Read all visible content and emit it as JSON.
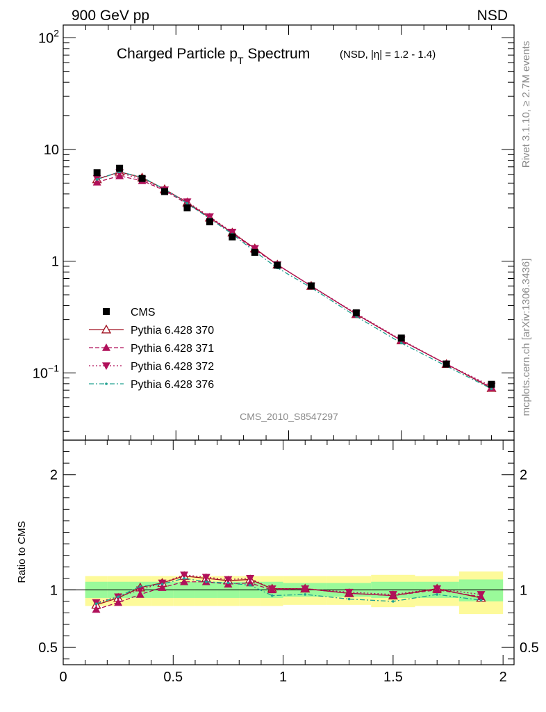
{
  "header": {
    "left": "900 GeV pp",
    "right": "NSD"
  },
  "side_labels": {
    "rivet": "Rivet 3.1.10, ≥ 2.7M events",
    "mcplots": "mcplots.cern.ch [arXiv:1306.3436]"
  },
  "chart_data": [
    {
      "type": "scatter",
      "title": "Charged Particle p",
      "title_sub": "T",
      "title_rest": " Spectrum",
      "subtitle": "(NSD, |η| = 1.2 - 1.4)",
      "watermark": "CMS_2010_S8547297",
      "yscale": "log",
      "xlim": [
        0,
        2
      ],
      "ylim": [
        0.025,
        130
      ],
      "y_ticks": [
        {
          "v": 100,
          "m": "10",
          "e": "2"
        },
        {
          "v": 10,
          "m": "10",
          "e": ""
        },
        {
          "v": 1,
          "m": "1",
          "e": ""
        },
        {
          "v": 0.1,
          "m": "10",
          "e": "−1"
        }
      ],
      "legend_position": "middle-left",
      "x": [
        0.15,
        0.25,
        0.35,
        0.45,
        0.55,
        0.65,
        0.75,
        0.85,
        0.95,
        1.1,
        1.3,
        1.5,
        1.7,
        1.9
      ],
      "series": [
        {
          "name": "CMS",
          "color": "#000000",
          "style": "data",
          "values": [
            6.2,
            6.8,
            5.5,
            4.2,
            3.0,
            2.25,
            1.65,
            1.2,
            0.92,
            0.6,
            0.345,
            0.205,
            0.12,
            0.079
          ]
        },
        {
          "name": "Pythia 6.428 370",
          "color": "#a01020",
          "style": "solid",
          "marker": "triangle-open",
          "values": [
            5.4,
            6.3,
            5.6,
            4.4,
            3.35,
            2.45,
            1.8,
            1.3,
            0.93,
            0.6,
            0.335,
            0.195,
            0.12,
            0.073
          ]
        },
        {
          "name": "Pythia 6.428 371",
          "color": "#b0105a",
          "style": "dashed",
          "marker": "triangle-up",
          "values": [
            5.1,
            5.8,
            5.25,
            4.3,
            3.25,
            2.45,
            1.78,
            1.27,
            0.93,
            0.6,
            0.335,
            0.195,
            0.12,
            0.074
          ]
        },
        {
          "name": "Pythia 6.428 372",
          "color": "#b0105a",
          "style": "dotted",
          "marker": "triangle-down",
          "values": [
            5.5,
            6.2,
            5.4,
            4.35,
            3.4,
            2.5,
            1.82,
            1.3,
            0.93,
            0.6,
            0.34,
            0.198,
            0.12,
            0.076
          ]
        },
        {
          "name": "Pythia 6.428 376",
          "color": "#20a090",
          "style": "dashdot",
          "marker": "dot",
          "values": [
            5.4,
            6.3,
            5.65,
            4.4,
            3.3,
            2.4,
            1.75,
            1.22,
            0.87,
            0.58,
            0.32,
            0.185,
            0.115,
            0.072
          ]
        }
      ]
    },
    {
      "type": "scatter",
      "ylabel": "Ratio to CMS",
      "xlim": [
        0,
        2.05
      ],
      "ylim": [
        0.35,
        2.3
      ],
      "x_ticks": [
        0,
        0.5,
        1,
        1.5,
        2
      ],
      "x_tick_labels": [
        "0",
        "0.5",
        "1",
        "1.5",
        "2"
      ],
      "y_ticks": [
        0.5,
        1,
        2
      ],
      "y_tick_labels": [
        "0.5",
        "1",
        "2"
      ],
      "reference_line": 1,
      "bands": {
        "edges": [
          0.1,
          0.2,
          0.3,
          0.4,
          0.5,
          0.6,
          0.7,
          0.8,
          0.9,
          1.0,
          1.2,
          1.4,
          1.6,
          1.8,
          2.0
        ],
        "stat": [
          [
            0.93,
            1.07
          ],
          [
            0.93,
            1.07
          ],
          [
            0.93,
            1.07
          ],
          [
            0.93,
            1.07
          ],
          [
            0.93,
            1.07
          ],
          [
            0.93,
            1.07
          ],
          [
            0.93,
            1.07
          ],
          [
            0.93,
            1.07
          ],
          [
            0.93,
            1.07
          ],
          [
            0.94,
            1.06
          ],
          [
            0.94,
            1.06
          ],
          [
            0.93,
            1.07
          ],
          [
            0.93,
            1.07
          ],
          [
            0.9,
            1.09
          ]
        ],
        "syst": [
          [
            0.86,
            1.12
          ],
          [
            0.86,
            1.12
          ],
          [
            0.86,
            1.12
          ],
          [
            0.86,
            1.12
          ],
          [
            0.86,
            1.12
          ],
          [
            0.86,
            1.12
          ],
          [
            0.86,
            1.12
          ],
          [
            0.86,
            1.12
          ],
          [
            0.86,
            1.12
          ],
          [
            0.87,
            1.12
          ],
          [
            0.87,
            1.12
          ],
          [
            0.85,
            1.13
          ],
          [
            0.86,
            1.12
          ],
          [
            0.79,
            1.16
          ]
        ]
      },
      "series": [
        {
          "name": "Pythia 6.428 370",
          "values": [
            0.87,
            0.93,
            1.02,
            1.06,
            1.12,
            1.1,
            1.08,
            1.09,
            1.01,
            1.01,
            0.97,
            0.95,
            1.01,
            0.93
          ]
        },
        {
          "name": "Pythia 6.428 371",
          "values": [
            0.83,
            0.89,
            0.96,
            1.02,
            1.07,
            1.07,
            1.05,
            1.06,
            1.0,
            1.01,
            0.97,
            0.95,
            1.0,
            0.94
          ]
        },
        {
          "name": "Pythia 6.428 372",
          "values": [
            0.89,
            0.94,
            1.0,
            1.06,
            1.13,
            1.11,
            1.09,
            1.1,
            1.01,
            1.01,
            0.98,
            0.96,
            1.01,
            0.96
          ]
        },
        {
          "name": "Pythia 6.428 376",
          "values": [
            0.88,
            0.94,
            1.03,
            1.05,
            1.1,
            1.07,
            1.06,
            1.04,
            0.95,
            0.96,
            0.92,
            0.9,
            0.96,
            0.91
          ]
        }
      ]
    }
  ]
}
